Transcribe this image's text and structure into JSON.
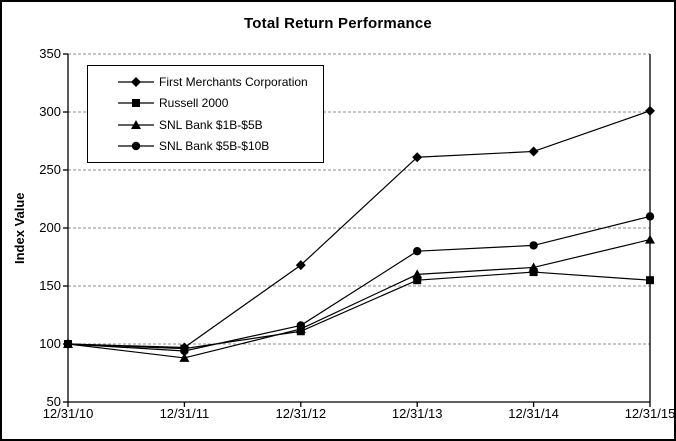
{
  "chart_data": {
    "type": "line",
    "title": "Total Return Performance",
    "xlabel": "",
    "ylabel": "Index Value",
    "ylim": [
      50,
      350
    ],
    "yticks": [
      50,
      100,
      150,
      200,
      250,
      300,
      350
    ],
    "categories": [
      "12/31/10",
      "12/31/11",
      "12/31/12",
      "12/31/13",
      "12/31/14",
      "12/31/15"
    ],
    "series": [
      {
        "name": "First Merchants Corporation",
        "marker": "diamond",
        "values": [
          100,
          97,
          168,
          261,
          266,
          301
        ]
      },
      {
        "name": "Russell 2000",
        "marker": "square",
        "values": [
          100,
          96,
          111,
          155,
          162,
          155
        ]
      },
      {
        "name": "SNL Bank $1B-$5B",
        "marker": "triangle",
        "values": [
          100,
          88,
          113,
          160,
          166,
          190
        ]
      },
      {
        "name": "SNL Bank $5B-$10B",
        "marker": "circle",
        "values": [
          100,
          94,
          116,
          180,
          185,
          210
        ]
      }
    ],
    "grid": "horizontal-dashed",
    "legend_position": "top-left-inside",
    "colors": {
      "series": "#000000",
      "gridline": "#8c8c8c",
      "axis": "#000000",
      "background": "#ffffff",
      "border": "#000000"
    }
  }
}
